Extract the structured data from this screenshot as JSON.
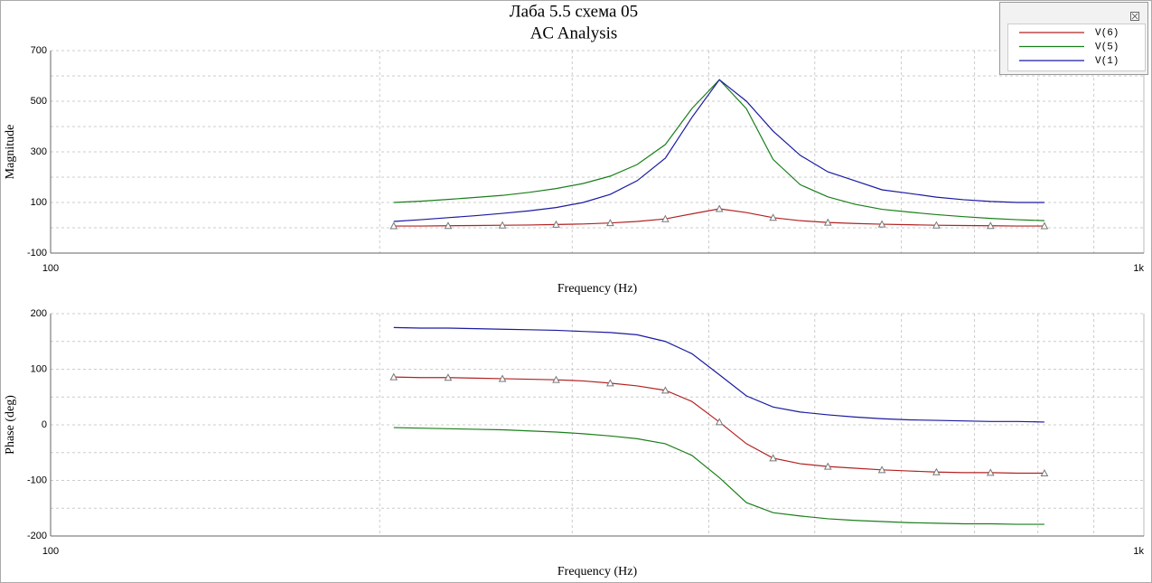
{
  "chart_data": [
    {
      "type": "line",
      "title": "Лаба 5.5 схема 05",
      "subtitle": "AC Analysis",
      "xlabel": "Frequency (Hz)",
      "ylabel": "Magnitude",
      "xscale": "log",
      "grid": true,
      "legend": "upper right",
      "xlim": [
        100,
        1000
      ],
      "xticks": [
        100,
        {
          "value": 1000,
          "label": "1k"
        }
      ],
      "ylim": [
        -100,
        700
      ],
      "yticks": [
        -100,
        100,
        300,
        500,
        700
      ],
      "x": [
        206,
        218,
        231,
        245,
        259,
        274,
        290,
        307,
        325,
        344,
        365,
        386,
        409,
        433,
        458,
        485,
        514,
        544,
        576,
        610,
        646,
        684,
        724,
        766,
        811
      ],
      "series": [
        {
          "name": "V(6)",
          "color": "#b22222",
          "marker": "triangle",
          "values": [
            7,
            7,
            8,
            9,
            10,
            11,
            13,
            15,
            19,
            25,
            35,
            55,
            75,
            60,
            40,
            28,
            21,
            17,
            14,
            12,
            10,
            9,
            8,
            7,
            7
          ]
        },
        {
          "name": "V(5)",
          "color": "#1a7f1a",
          "values": [
            100,
            105,
            112,
            120,
            128,
            140,
            155,
            175,
            204,
            250,
            329,
            471,
            585,
            470,
            270,
            170,
            122,
            93,
            73,
            62,
            52,
            44,
            37,
            32,
            28
          ]
        },
        {
          "name": "V(1)",
          "color": "#1a1aa0",
          "values": [
            25,
            32,
            40,
            48,
            57,
            67,
            80,
            100,
            132,
            186,
            275,
            436,
            585,
            500,
            382,
            286,
            221,
            186,
            150,
            136,
            121,
            111,
            104,
            100,
            100
          ]
        }
      ]
    },
    {
      "type": "line",
      "xlabel": "Frequency (Hz)",
      "ylabel": "Phase (deg)",
      "xscale": "log",
      "grid": true,
      "xlim": [
        100,
        1000
      ],
      "xticks": [
        100,
        {
          "value": 1000,
          "label": "1k"
        }
      ],
      "ylim": [
        -200,
        200
      ],
      "yticks": [
        -200,
        -100,
        0,
        100,
        200
      ],
      "x": [
        206,
        218,
        231,
        245,
        259,
        274,
        290,
        307,
        325,
        344,
        365,
        386,
        409,
        433,
        458,
        485,
        514,
        544,
        576,
        610,
        646,
        684,
        724,
        766,
        811
      ],
      "series": [
        {
          "color": "#b22222",
          "marker": "triangle",
          "values": [
            86,
            85,
            85,
            84,
            83,
            82,
            81,
            79,
            75,
            70,
            62,
            42,
            5,
            -34,
            -60,
            -70,
            -75,
            -78,
            -81,
            -83,
            -85,
            -86,
            -86,
            -87,
            -87
          ]
        },
        {
          "color": "#1a7f1a",
          "values": [
            -5,
            -6,
            -7,
            -8,
            -9,
            -11,
            -13,
            -16,
            -20,
            -25,
            -34,
            -55,
            -95,
            -140,
            -158,
            -164,
            -169,
            -172,
            -174,
            -176,
            -177,
            -178,
            -178,
            -179,
            -179
          ]
        },
        {
          "color": "#1a1aa0",
          "values": [
            175,
            174,
            174,
            173,
            172,
            171,
            170,
            168,
            166,
            162,
            150,
            128,
            90,
            52,
            32,
            23,
            18,
            14,
            11,
            9,
            8,
            7,
            6,
            6,
            5
          ]
        }
      ]
    }
  ]
}
